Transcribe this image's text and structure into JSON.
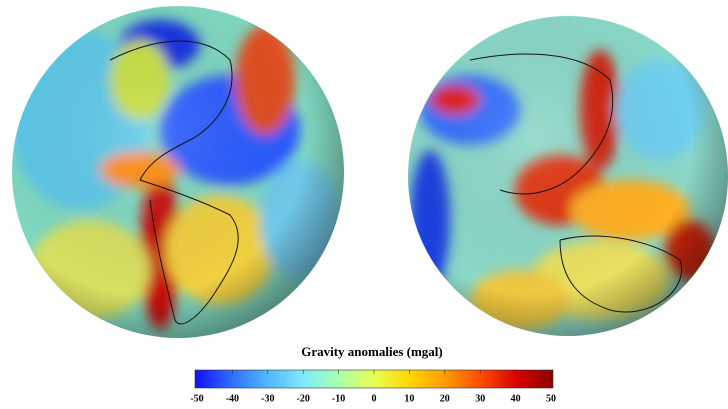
{
  "colorbar": {
    "title": "Gravity anomalies (mgal)",
    "lim": [
      -50,
      50
    ],
    "ticks": [
      -50,
      -40,
      -30,
      -20,
      -10,
      0,
      10,
      20,
      30,
      40,
      50
    ],
    "colors": [
      "#1010ff",
      "#2e6bff",
      "#4fb6ff",
      "#7fe8ff",
      "#a8ffb0",
      "#e8ff50",
      "#ffd700",
      "#ff9a00",
      "#ff4a00",
      "#d80000",
      "#8a0000"
    ]
  }
}
